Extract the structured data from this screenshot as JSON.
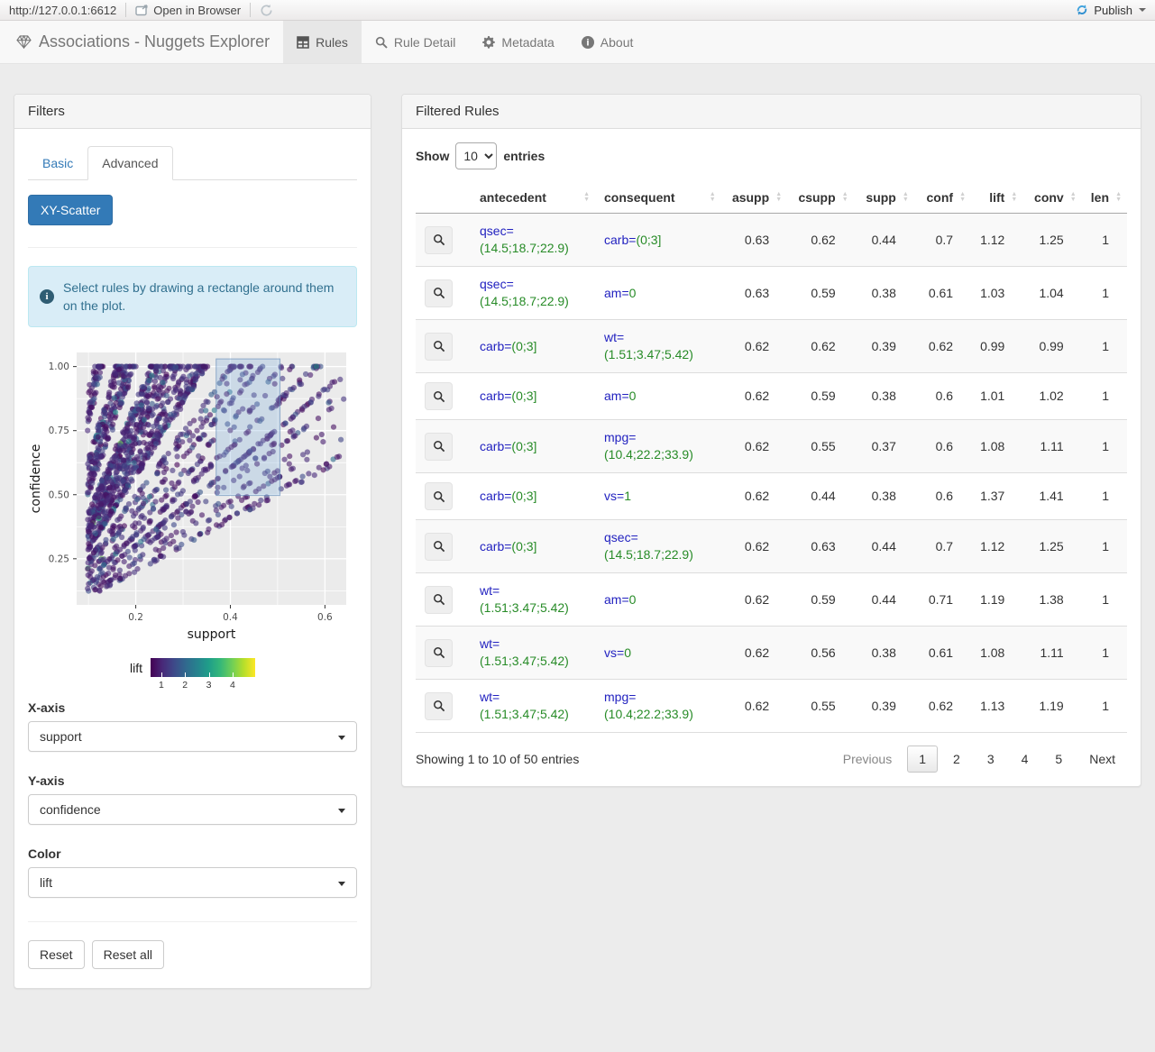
{
  "topbar": {
    "url": "http://127.0.0.1:6612",
    "open_in_browser": "Open in Browser",
    "publish": "Publish",
    "publish_icon_color": "#3fa2dd"
  },
  "navbar": {
    "brand": "Associations - Nuggets Explorer",
    "tabs": [
      {
        "label": "Rules",
        "icon": "table-icon",
        "active": true
      },
      {
        "label": "Rule Detail",
        "icon": "search-icon",
        "active": false
      },
      {
        "label": "Metadata",
        "icon": "gear-icon",
        "active": false
      },
      {
        "label": "About",
        "icon": "info-icon",
        "active": false
      }
    ]
  },
  "filters": {
    "title": "Filters",
    "tabs": [
      {
        "label": "Basic",
        "active": false
      },
      {
        "label": "Advanced",
        "active": true
      }
    ],
    "scatter_button": "XY-Scatter",
    "info_text": "Select rules by drawing a rectangle around them on the plot.",
    "x_axis_label": "X-axis",
    "x_axis_value": "support",
    "y_axis_label": "Y-axis",
    "y_axis_value": "confidence",
    "color_label": "Color",
    "color_value": "lift",
    "reset_label": "Reset",
    "reset_all_label": "Reset all"
  },
  "chart_data": {
    "type": "scatter",
    "title": "",
    "xlabel": "support",
    "ylabel": "confidence",
    "xlim": [
      0.075,
      0.645
    ],
    "ylim": [
      0.07,
      1.055
    ],
    "xticks": [
      0.2,
      0.4,
      0.6
    ],
    "xtick_labels": [
      "0.2",
      "0.4",
      "0.6"
    ],
    "xticks_minor": [
      0.1,
      0.3,
      0.5
    ],
    "yticks": [
      0.25,
      0.5,
      0.75,
      1.0
    ],
    "ytick_labels": [
      "0.25",
      "0.50",
      "0.75",
      "1.00"
    ],
    "yticks_minor": [
      0.125,
      0.375,
      0.625,
      0.875
    ],
    "grid": true,
    "panel_color": "#ebebeb",
    "grid_color": "#ffffff",
    "legend": {
      "label": "lift",
      "position": "bottom",
      "ticks": [
        1,
        2,
        3,
        4
      ],
      "domain": [
        0.55,
        4.95
      ],
      "colormap": "viridis"
    },
    "selection_rect": {
      "x0": 0.37,
      "x1": 0.505,
      "y0": 0.497,
      "y1": 1.03
    },
    "points": {
      "count": 1900,
      "seed": 42,
      "note": "dense wedge of association rules: supp = asupp * conf, supp >= 0.1, conf 0.12-1.0, colored by lift (mostly 0.6-2, few up to 4.6)"
    }
  },
  "rules_panel": {
    "title": "Filtered Rules",
    "show_label": "Show",
    "entries_label": "entries",
    "page_length": "10",
    "columns": [
      "antecedent",
      "consequent",
      "asupp",
      "csupp",
      "supp",
      "conf",
      "lift",
      "conv",
      "len"
    ],
    "attr_color": "#2222c0",
    "value_color": "#278b27",
    "rows": [
      {
        "antecedent_name": "qsec=",
        "antecedent_value": "(14.5;18.7;22.9)",
        "consequent_name": "carb=",
        "consequent_value": "(0;3]",
        "asupp": "0.63",
        "csupp": "0.62",
        "supp": "0.44",
        "conf": "0.7",
        "lift": "1.12",
        "conv": "1.25",
        "len": "1"
      },
      {
        "antecedent_name": "qsec=",
        "antecedent_value": "(14.5;18.7;22.9)",
        "consequent_name": "am=",
        "consequent_value": "0",
        "asupp": "0.63",
        "csupp": "0.59",
        "supp": "0.38",
        "conf": "0.61",
        "lift": "1.03",
        "conv": "1.04",
        "len": "1"
      },
      {
        "antecedent_name": "carb=",
        "antecedent_value": "(0;3]",
        "consequent_name": "wt=",
        "consequent_value": "(1.51;3.47;5.42)",
        "asupp": "0.62",
        "csupp": "0.62",
        "supp": "0.39",
        "conf": "0.62",
        "lift": "0.99",
        "conv": "0.99",
        "len": "1"
      },
      {
        "antecedent_name": "carb=",
        "antecedent_value": "(0;3]",
        "consequent_name": "am=",
        "consequent_value": "0",
        "asupp": "0.62",
        "csupp": "0.59",
        "supp": "0.38",
        "conf": "0.6",
        "lift": "1.01",
        "conv": "1.02",
        "len": "1"
      },
      {
        "antecedent_name": "carb=",
        "antecedent_value": "(0;3]",
        "consequent_name": "mpg=",
        "consequent_value": "(10.4;22.2;33.9)",
        "asupp": "0.62",
        "csupp": "0.55",
        "supp": "0.37",
        "conf": "0.6",
        "lift": "1.08",
        "conv": "1.11",
        "len": "1"
      },
      {
        "antecedent_name": "carb=",
        "antecedent_value": "(0;3]",
        "consequent_name": "vs=",
        "consequent_value": "1",
        "asupp": "0.62",
        "csupp": "0.44",
        "supp": "0.38",
        "conf": "0.6",
        "lift": "1.37",
        "conv": "1.41",
        "len": "1"
      },
      {
        "antecedent_name": "carb=",
        "antecedent_value": "(0;3]",
        "consequent_name": "qsec=",
        "consequent_value": "(14.5;18.7;22.9)",
        "asupp": "0.62",
        "csupp": "0.63",
        "supp": "0.44",
        "conf": "0.7",
        "lift": "1.12",
        "conv": "1.25",
        "len": "1"
      },
      {
        "antecedent_name": "wt=",
        "antecedent_value": "(1.51;3.47;5.42)",
        "consequent_name": "am=",
        "consequent_value": "0",
        "asupp": "0.62",
        "csupp": "0.59",
        "supp": "0.44",
        "conf": "0.71",
        "lift": "1.19",
        "conv": "1.38",
        "len": "1"
      },
      {
        "antecedent_name": "wt=",
        "antecedent_value": "(1.51;3.47;5.42)",
        "consequent_name": "vs=",
        "consequent_value": "0",
        "asupp": "0.62",
        "csupp": "0.56",
        "supp": "0.38",
        "conf": "0.61",
        "lift": "1.08",
        "conv": "1.11",
        "len": "1"
      },
      {
        "antecedent_name": "wt=",
        "antecedent_value": "(1.51;3.47;5.42)",
        "consequent_name": "mpg=",
        "consequent_value": "(10.4;22.2;33.9)",
        "asupp": "0.62",
        "csupp": "0.55",
        "supp": "0.39",
        "conf": "0.62",
        "lift": "1.13",
        "conv": "1.19",
        "len": "1"
      }
    ],
    "info": "Showing 1 to 10 of 50 entries",
    "pagination": {
      "previous": "Previous",
      "pages": [
        "1",
        "2",
        "3",
        "4",
        "5"
      ],
      "current": "1",
      "next": "Next"
    }
  }
}
